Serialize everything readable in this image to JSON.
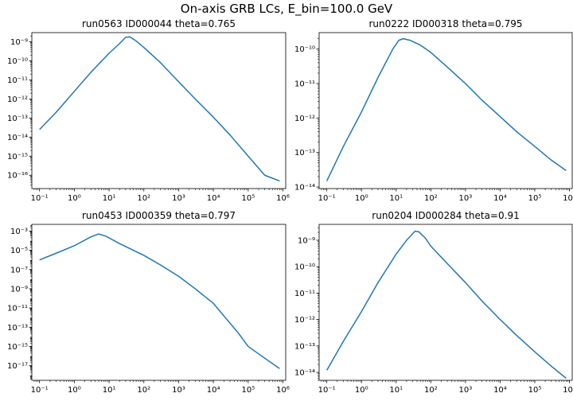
{
  "figure": {
    "suptitle": "On-axis GRB LCs, E_bin=100.0 GeV"
  },
  "chart_data": [
    {
      "type": "line",
      "title": "run0563    ID000044    theta=0.765",
      "xscale": "log",
      "yscale": "log",
      "xlim": [
        0.06,
        1200000
      ],
      "ylim": [
        2e-17,
        3e-09
      ],
      "xticks": [
        0.1,
        1,
        10,
        100,
        1000,
        10000,
        100000,
        1000000
      ],
      "xtick_labels": [
        "10^-1",
        "10^0",
        "10^1",
        "10^2",
        "10^3",
        "10^4",
        "10^5",
        "10^6"
      ],
      "yticks": [
        1e-16,
        1e-15,
        1e-14,
        1e-13,
        1e-12,
        1e-11,
        1e-10,
        1e-09
      ],
      "ytick_labels": [
        "10^-16",
        "10^-15",
        "10^-14",
        "10^-13",
        "10^-12",
        "10^-11",
        "10^-10",
        "10^-9"
      ],
      "grid": false,
      "color": "#1f77b4",
      "series": [
        {
          "x": [
            0.1,
            0.3,
            1,
            3,
            10,
            20,
            30,
            40,
            60,
            100,
            300,
            1000,
            3000,
            10000,
            30000,
            100000,
            300000,
            800000
          ],
          "y": [
            2.5e-14,
            2e-13,
            2.5e-12,
            2.5e-11,
            2.5e-10,
            8e-10,
            1.7e-09,
            1.8e-09,
            1.1e-09,
            5e-10,
            8e-11,
            8e-12,
            1e-12,
            1.1e-13,
            1.3e-14,
            1e-15,
            1e-16,
            5e-17
          ]
        }
      ]
    },
    {
      "type": "line",
      "title": "run0222    ID000318    theta=0.795",
      "xscale": "log",
      "yscale": "log",
      "xlim": [
        0.06,
        1200000
      ],
      "ylim": [
        9e-15,
        3e-10
      ],
      "xticks": [
        0.1,
        1,
        10,
        100,
        1000,
        10000,
        100000,
        1000000
      ],
      "xtick_labels": [
        "10^-1",
        "10^0",
        "10^1",
        "10^2",
        "10^3",
        "10^4",
        "10^5",
        "10^6"
      ],
      "yticks": [
        1e-14,
        1e-13,
        1e-12,
        1e-11,
        1e-10
      ],
      "ytick_labels": [
        "10^-14",
        "10^-13",
        "10^-12",
        "10^-11",
        "10^-10"
      ],
      "grid": false,
      "color": "#1f77b4",
      "series": [
        {
          "x": [
            0.1,
            0.3,
            1,
            3,
            8,
            12,
            16,
            25,
            50,
            100,
            300,
            1000,
            3000,
            10000,
            30000,
            100000,
            300000,
            800000
          ],
          "y": [
            1.5e-14,
            1.5e-13,
            1.5e-12,
            1.5e-11,
            1e-10,
            1.8e-10,
            2e-10,
            1.8e-10,
            1.3e-10,
            8e-11,
            3e-11,
            1e-11,
            3.3e-12,
            1.1e-12,
            4e-13,
            1.5e-13,
            6e-14,
            3e-14
          ]
        }
      ]
    },
    {
      "type": "line",
      "title": "run0453    ID000359    theta=0.797",
      "xscale": "log",
      "yscale": "log",
      "xlim": [
        0.06,
        1200000
      ],
      "ylim": [
        3e-19,
        0.005
      ],
      "xticks": [
        0.1,
        1,
        10,
        100,
        1000,
        10000,
        100000,
        1000000
      ],
      "xtick_labels": [
        "10^-1",
        "10^0",
        "10^1",
        "10^2",
        "10^3",
        "10^4",
        "10^5",
        "10^6"
      ],
      "yticks": [
        1e-17,
        1e-15,
        1e-13,
        1e-11,
        1e-09,
        1e-07,
        1e-05,
        0.001
      ],
      "ytick_labels": [
        "10^-17",
        "10^-15",
        "10^-13",
        "10^-11",
        "10^-9",
        "10^-7",
        "10^-5",
        "10^-3"
      ],
      "grid": false,
      "color": "#1f77b4",
      "series": [
        {
          "x": [
            0.1,
            0.3,
            1,
            3,
            5,
            8,
            20,
            100,
            300,
            1000,
            3000,
            10000,
            20000,
            50000,
            100000,
            300000,
            800000
          ],
          "y": [
            1e-06,
            5e-06,
            3e-05,
            0.00025,
            0.0005,
            0.0003,
            5e-05,
            3e-06,
            3e-07,
            2e-08,
            1e-09,
            3e-11,
            1.5e-12,
            3e-14,
            1e-15,
            6e-17,
            5e-18
          ]
        }
      ]
    },
    {
      "type": "line",
      "title": "run0204    ID000284    theta=0.91",
      "xscale": "log",
      "yscale": "log",
      "xlim": [
        0.06,
        1200000
      ],
      "ylim": [
        5e-15,
        4e-09
      ],
      "xticks": [
        0.1,
        1,
        10,
        100,
        1000,
        10000,
        100000,
        1000000
      ],
      "xtick_labels": [
        "10^-1",
        "10^0",
        "10^1",
        "10^2",
        "10^3",
        "10^4",
        "10^5",
        "10^6"
      ],
      "yticks": [
        1e-14,
        1e-13,
        1e-12,
        1e-11,
        1e-10,
        1e-09
      ],
      "ytick_labels": [
        "10^-14",
        "10^-13",
        "10^-12",
        "10^-11",
        "10^-10",
        "10^-9"
      ],
      "grid": false,
      "color": "#1f77b4",
      "series": [
        {
          "x": [
            0.1,
            0.3,
            1,
            3,
            10,
            20,
            35,
            45,
            70,
            100,
            300,
            1000,
            3000,
            10000,
            30000,
            100000,
            300000,
            800000
          ],
          "y": [
            1.2e-14,
            1.5e-13,
            2e-12,
            2.5e-11,
            3e-10,
            1e-09,
            2.2e-09,
            2.1e-09,
            1.2e-09,
            6e-10,
            1.3e-10,
            2.5e-11,
            5e-12,
            1e-12,
            2.5e-13,
            6e-14,
            1.7e-14,
            6e-15
          ]
        }
      ]
    }
  ]
}
